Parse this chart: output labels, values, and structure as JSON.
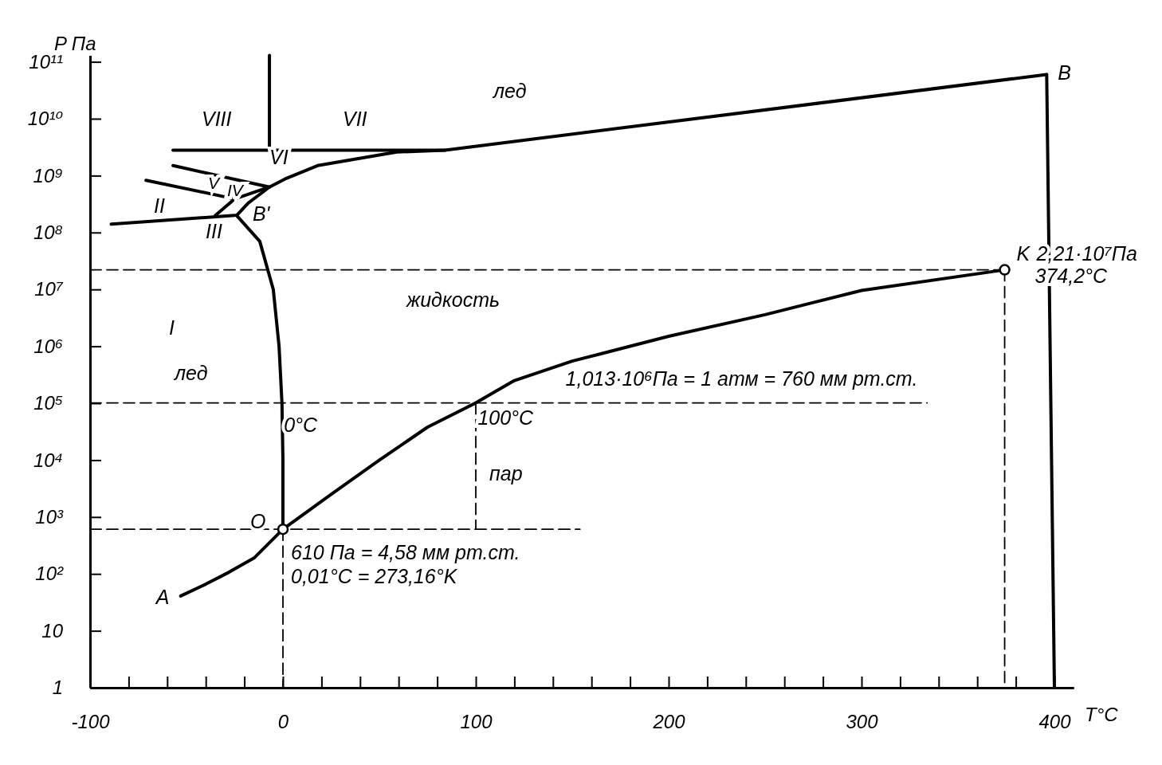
{
  "chart_data": {
    "type": "line",
    "xlabel": "T°C",
    "ylabel": "P Па",
    "log": "y",
    "xlim": [
      -100,
      410
    ],
    "ylim": [
      1,
      130000000000
    ],
    "xticks": [
      -100,
      {
        "value": -80,
        "label": null
      },
      {
        "value": -60,
        "label": null
      },
      {
        "value": -40,
        "label": null
      },
      {
        "value": -20,
        "label": null
      },
      0,
      {
        "value": 20,
        "label": null
      },
      {
        "value": 40,
        "label": null
      },
      {
        "value": 60,
        "label": null
      },
      {
        "value": 80,
        "label": null
      },
      100,
      {
        "value": 120,
        "label": null
      },
      {
        "value": 140,
        "label": null
      },
      {
        "value": 160,
        "label": null
      },
      {
        "value": 180,
        "label": null
      },
      200,
      {
        "value": 220,
        "label": null
      },
      {
        "value": 240,
        "label": null
      },
      {
        "value": 260,
        "label": null
      },
      {
        "value": 280,
        "label": null
      },
      300,
      {
        "value": 320,
        "label": null
      },
      {
        "value": 340,
        "label": null
      },
      {
        "value": 360,
        "label": null
      },
      {
        "value": 380,
        "label": null
      },
      400
    ],
    "yticks": [
      1,
      10,
      {
        "value": 100,
        "label": "10²"
      },
      {
        "value": 1000,
        "label": "10³"
      },
      {
        "value": 10000,
        "label": "10⁴"
      },
      {
        "value": 100000,
        "label": "10⁵"
      },
      {
        "value": 1000000,
        "label": "10⁶"
      },
      {
        "value": 10000000,
        "label": "10⁷"
      },
      {
        "value": 100000000,
        "label": "10⁸"
      },
      {
        "value": 1000000000,
        "label": "10⁹"
      },
      {
        "value": 10000000000,
        "label": "10¹⁰"
      },
      {
        "value": 100000000000,
        "label": "10¹¹"
      }
    ],
    "series": [
      {
        "color": "#000000",
        "line_style": "solid",
        "x": [
          -53,
          -40,
          -28,
          -15,
          0.01
        ],
        "values": [
          41,
          66,
          107,
          190,
          610
        ]
      },
      {
        "color": "#000000",
        "line_style": "solid",
        "x": [
          0.01,
          25,
          50,
          75,
          100,
          120,
          150,
          200,
          250,
          300,
          374.2
        ],
        "values": [
          610,
          2500,
          10000,
          38000,
          101300,
          250000,
          550000,
          1500000,
          3600000,
          9600000,
          22100000
        ]
      },
      {
        "color": "#000000",
        "line_style": "solid",
        "x": [
          0.01,
          0,
          -0.5,
          -2,
          -5,
          -12,
          -24
        ],
        "values": [
          610,
          10000,
          100000,
          1000000,
          10000000,
          70000000,
          200000000
        ]
      },
      {
        "color": "#000000",
        "line_style": "solid",
        "x": [
          -24,
          -18,
          -7,
          1,
          18,
          59,
          84,
          396
        ],
        "values": [
          200000000,
          330000000,
          630000000,
          870000000,
          1500000000,
          2600000000,
          2800000000,
          60000000000
        ]
      },
      {
        "color": "#000000",
        "line_style": "solid",
        "x": [
          -57,
          84
        ],
        "values": [
          2800000000,
          2800000000
        ]
      },
      {
        "color": "#000000",
        "line_style": "solid",
        "x": [
          -7,
          -7
        ],
        "values": [
          2800000000,
          130000000000
        ]
      },
      {
        "color": "#000000",
        "line_style": "solid",
        "x": [
          -57,
          -7
        ],
        "values": [
          1500000000,
          630000000
        ]
      },
      {
        "color": "#000000",
        "line_style": "solid",
        "x": [
          -71,
          -25,
          -7
        ],
        "values": [
          830000000,
          390000000,
          630000000
        ]
      },
      {
        "color": "#000000",
        "line_style": "solid",
        "x": [
          -89,
          -25
        ],
        "values": [
          140000000,
          200000000
        ]
      },
      {
        "color": "#000000",
        "line_style": "solid",
        "x": [
          -35,
          -25
        ],
        "values": [
          200000000,
          390000000
        ]
      },
      {
        "color": "#000000",
        "line_style": "solid",
        "x": [
          396,
          400
        ],
        "values": [
          60000000000,
          1
        ]
      },
      {
        "color": "#000000",
        "line_style": "dashed",
        "x": [
          -100,
          374.2
        ],
        "values": [
          22100000,
          22100000
        ]
      },
      {
        "color": "#000000",
        "line_style": "dashed",
        "x": [
          -100,
          334
        ],
        "values": [
          101300,
          101300
        ]
      },
      {
        "color": "#000000",
        "line_style": "dashed",
        "x": [
          -100,
          154
        ],
        "values": [
          610,
          610
        ]
      },
      {
        "color": "#000000",
        "line_style": "dashed",
        "x": [
          0.01,
          0.01
        ],
        "values": [
          610,
          1
        ]
      },
      {
        "color": "#000000",
        "line_style": "dashed",
        "x": [
          100,
          100
        ],
        "values": [
          101300,
          610
        ]
      },
      {
        "color": "#000000",
        "line_style": "dashed",
        "x": [
          374.2,
          374.2
        ],
        "values": [
          22100000,
          1
        ]
      },
      {
        "type": "scatter",
        "color": "#000000",
        "marker": "circle",
        "x": [
          0.01,
          374.2
        ],
        "values": [
          610,
          22100000
        ]
      }
    ],
    "annotations": [
      "VIII",
      "VII",
      "лед",
      "VI",
      "V",
      "IV",
      "II",
      "III",
      {
        "text": "B'",
        "x": -24,
        "y": 200000000
      },
      {
        "text": "B",
        "x": 396,
        "y": 60000000000
      },
      {
        "text": "K",
        "x": 374.2,
        "y": 22100000
      },
      {
        "text": "2,21·10⁷Па",
        "x": 374.2,
        "y": 22100000
      },
      {
        "text": "374,2°C",
        "x": 374.2,
        "y": 22100000
      },
      "I",
      "лед",
      "жидкость",
      {
        "text": "0°C",
        "x": 0.5,
        "y": 39000
      },
      {
        "text": "100°C",
        "x": 101,
        "y": 52000
      },
      "пар",
      {
        "text": "O",
        "x": 0.01,
        "y": 610
      },
      {
        "text": "A",
        "x": -53,
        "y": 41
      },
      {
        "text": "1,013·10⁶Па = 1 атм = 760 мм рт.ст.",
        "x": 149,
        "y": 101300
      },
      {
        "text": "610 Па = 4,58 мм рт.ст.",
        "x": 0.01,
        "y": 610
      },
      {
        "text": "0,01°C = 273,16°K",
        "x": 0.01,
        "y": 610
      }
    ]
  }
}
